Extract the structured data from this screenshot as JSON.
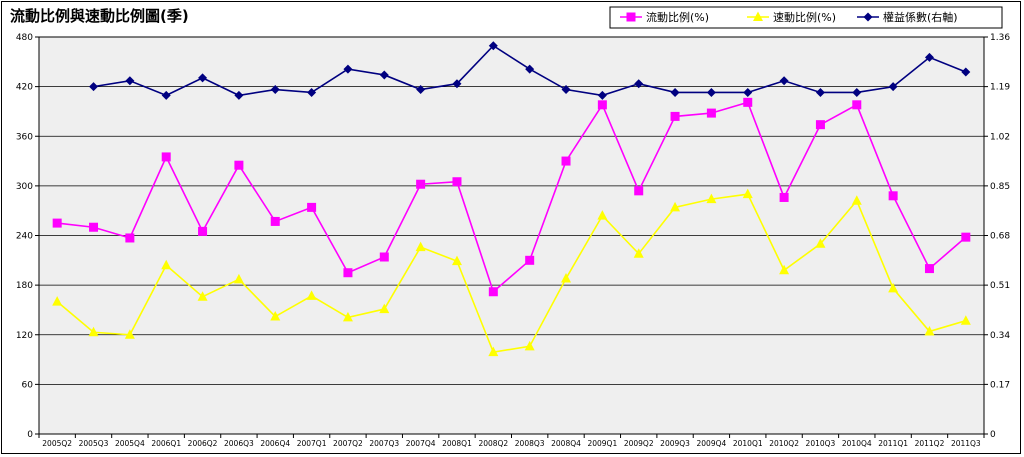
{
  "chart_data": {
    "type": "line",
    "title": "流動比例與速動比例圖(季)",
    "categories": [
      "2005Q2",
      "2005Q3",
      "2005Q4",
      "2006Q1",
      "2006Q2",
      "2006Q3",
      "2006Q4",
      "2007Q1",
      "2007Q2",
      "2007Q3",
      "2007Q4",
      "2008Q1",
      "2008Q2",
      "2008Q3",
      "2008Q4",
      "2009Q1",
      "2009Q2",
      "2009Q3",
      "2009Q4",
      "2010Q1",
      "2010Q2",
      "2010Q3",
      "2010Q4",
      "2011Q1",
      "2011Q2",
      "2011Q3"
    ],
    "y_left": {
      "min": 0,
      "max": 480,
      "ticks": [
        0,
        60,
        120,
        180,
        240,
        300,
        360,
        420,
        480
      ]
    },
    "y_right": {
      "min": 0,
      "max": 1.36,
      "ticks": [
        "0",
        "0.17",
        "0.34",
        "0.51",
        "0.68",
        "0.85",
        "1.02",
        "1.19",
        "1.36"
      ]
    },
    "grid": true,
    "legend_position": "top-right",
    "series": [
      {
        "name": "流動比例(%)",
        "axis": "left",
        "color": "#ff00ff",
        "marker": "square",
        "values": [
          255,
          250,
          237,
          335,
          245,
          325,
          257,
          274,
          195,
          214,
          302,
          305,
          172,
          210,
          330,
          398,
          294,
          384,
          388,
          401,
          286,
          374,
          398,
          288,
          200,
          238
        ]
      },
      {
        "name": "速動比例(%)",
        "axis": "left",
        "color": "#ffff00",
        "marker": "triangle",
        "values": [
          160,
          123,
          120,
          204,
          166,
          187,
          142,
          167,
          141,
          151,
          226,
          209,
          99,
          106,
          188,
          264,
          218,
          274,
          284,
          290,
          198,
          230,
          282,
          176,
          124,
          137
        ]
      },
      {
        "name": "權益係數(右軸)",
        "axis": "right",
        "color": "#000080",
        "marker": "diamond",
        "values": [
          null,
          1.19,
          1.21,
          1.16,
          1.22,
          1.16,
          1.18,
          1.17,
          1.25,
          1.23,
          1.18,
          1.2,
          1.33,
          1.25,
          1.18,
          1.16,
          1.2,
          1.17,
          1.17,
          1.17,
          1.21,
          1.17,
          1.17,
          1.19,
          1.29,
          1.24
        ]
      }
    ]
  }
}
